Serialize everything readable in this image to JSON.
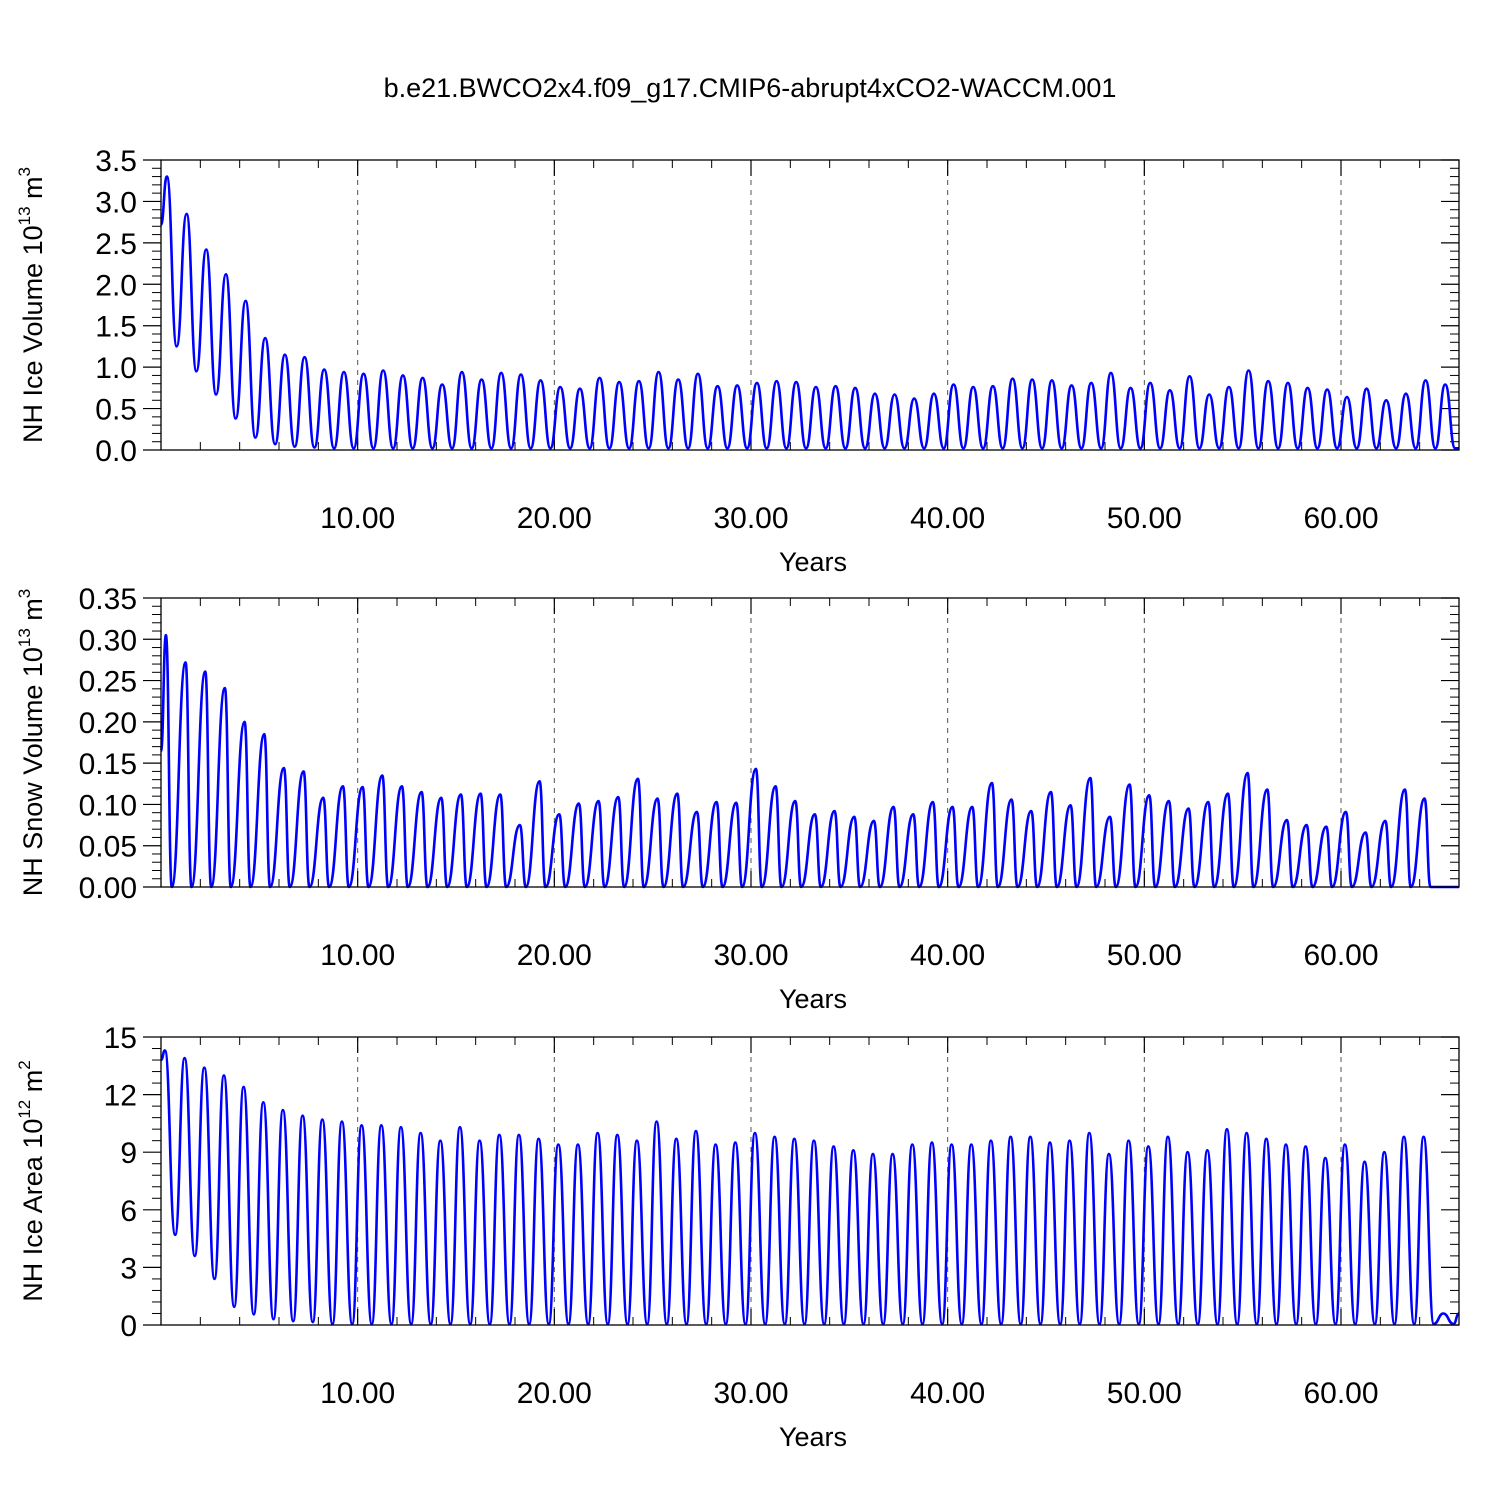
{
  "figure": {
    "title": "b.e21.BWCO2x4.f09_g17.CMIP6-abrupt4xCO2-WACCM.001"
  },
  "colors": {
    "series": "#0000ff",
    "axes": "#000000",
    "grid": "#555555"
  },
  "chart_data": [
    {
      "type": "line",
      "ylabel": "NH Ice Volume 10",
      "ylabel_sup": "13",
      "ylabel_unit": " m",
      "ylabel_unit_sup": "3",
      "xlabel": "Years",
      "xlim": [
        0,
        66
      ],
      "ylim": [
        0,
        3.5
      ],
      "x_ticks": [
        10,
        20,
        30,
        40,
        50,
        60
      ],
      "x_tick_labels": [
        "10.00",
        "20.00",
        "30.00",
        "40.00",
        "50.00",
        "60.00"
      ],
      "y_ticks": [
        0,
        0.5,
        1.0,
        1.5,
        2.0,
        2.5,
        3.0,
        3.5
      ],
      "y_tick_labels": [
        "0.0",
        "0.5",
        "1.0",
        "1.5",
        "2.0",
        "2.5",
        "3.0",
        "3.5"
      ],
      "x_grid": "dashed",
      "series": [
        {
          "period": 1,
          "start": 2.72,
          "end": 0.02,
          "peak_phase": 0.3,
          "trough_phase": 0.8,
          "peaks": [
            3.3,
            2.85,
            2.42,
            2.12,
            1.8,
            1.35,
            1.15,
            1.12,
            0.97,
            0.94,
            0.92,
            0.96,
            0.9,
            0.87,
            0.79,
            0.94,
            0.85,
            0.93,
            0.91,
            0.84,
            0.76,
            0.74,
            0.87,
            0.82,
            0.83,
            0.94,
            0.85,
            0.92,
            0.77,
            0.78,
            0.81,
            0.83,
            0.82,
            0.76,
            0.77,
            0.75,
            0.68,
            0.67,
            0.62,
            0.68,
            0.79,
            0.76,
            0.77,
            0.86,
            0.85,
            0.84,
            0.78,
            0.81,
            0.93,
            0.75,
            0.81,
            0.72,
            0.89,
            0.67,
            0.76,
            0.96,
            0.83,
            0.81,
            0.75,
            0.73,
            0.64,
            0.74,
            0.6,
            0.68,
            0.84,
            0.79
          ],
          "troughs": [
            1.25,
            0.95,
            0.67,
            0.38,
            0.15,
            0.07,
            0.04,
            0.03,
            0.02,
            0.02,
            0.02,
            0.02,
            0.02,
            0.02,
            0.02,
            0.02,
            0.02,
            0.02,
            0.02,
            0.02,
            0.02,
            0.02,
            0.02,
            0.02,
            0.02,
            0.02,
            0.02,
            0.02,
            0.02,
            0.02,
            0.02,
            0.02,
            0.02,
            0.02,
            0.02,
            0.02,
            0.02,
            0.02,
            0.02,
            0.02,
            0.02,
            0.02,
            0.02,
            0.02,
            0.02,
            0.02,
            0.02,
            0.02,
            0.02,
            0.02,
            0.02,
            0.02,
            0.02,
            0.02,
            0.02,
            0.02,
            0.02,
            0.02,
            0.02,
            0.02,
            0.02,
            0.02,
            0.02,
            0.02,
            0.02,
            0.02
          ]
        }
      ]
    },
    {
      "type": "line",
      "ylabel": "NH Snow Volume 10",
      "ylabel_sup": "13",
      "ylabel_unit": " m",
      "ylabel_unit_sup": "3",
      "xlabel": "Years",
      "xlim": [
        0,
        66
      ],
      "ylim": [
        0,
        0.35
      ],
      "x_ticks": [
        10,
        20,
        30,
        40,
        50,
        60
      ],
      "x_tick_labels": [
        "10.00",
        "20.00",
        "30.00",
        "40.00",
        "50.00",
        "60.00"
      ],
      "y_ticks": [
        0,
        0.05,
        0.1,
        0.15,
        0.2,
        0.25,
        0.3,
        0.35
      ],
      "y_tick_labels": [
        "0.00",
        "0.05",
        "0.10",
        "0.15",
        "0.20",
        "0.25",
        "0.30",
        "0.35"
      ],
      "x_grid": "dashed",
      "series": [
        {
          "period": 1,
          "start": 0.165,
          "end": 0.0,
          "peak_phase": 0.25,
          "trough_phase": 0.55,
          "peaks": [
            0.305,
            0.272,
            0.261,
            0.241,
            0.2,
            0.185,
            0.144,
            0.14,
            0.108,
            0.122,
            0.121,
            0.135,
            0.122,
            0.115,
            0.108,
            0.112,
            0.113,
            0.112,
            0.075,
            0.128,
            0.088,
            0.101,
            0.104,
            0.109,
            0.131,
            0.107,
            0.113,
            0.091,
            0.103,
            0.102,
            0.143,
            0.122,
            0.104,
            0.088,
            0.092,
            0.085,
            0.08,
            0.097,
            0.088,
            0.103,
            0.097,
            0.097,
            0.126,
            0.106,
            0.092,
            0.115,
            0.099,
            0.132,
            0.085,
            0.124,
            0.111,
            0.104,
            0.095,
            0.103,
            0.113,
            0.138,
            0.118,
            0.081,
            0.075,
            0.073,
            0.091,
            0.066,
            0.08,
            0.118,
            0.107,
            0.0
          ],
          "troughs": [
            0.0,
            0.0,
            0.0,
            0.0,
            0.0,
            0.0,
            0.0,
            0.0,
            0.0,
            0.0,
            0.0,
            0.0,
            0.0,
            0.0,
            0.0,
            0.0,
            0.0,
            0.0,
            0.0,
            0.0,
            0.0,
            0.0,
            0.0,
            0.0,
            0.0,
            0.0,
            0.0,
            0.0,
            0.0,
            0.0,
            0.0,
            0.0,
            0.0,
            0.0,
            0.0,
            0.0,
            0.0,
            0.0,
            0.0,
            0.0,
            0.0,
            0.0,
            0.0,
            0.0,
            0.0,
            0.0,
            0.0,
            0.0,
            0.0,
            0.0,
            0.0,
            0.0,
            0.0,
            0.0,
            0.0,
            0.0,
            0.0,
            0.0,
            0.0,
            0.0,
            0.0,
            0.0,
            0.0,
            0.0,
            0.0,
            0.0
          ]
        }
      ]
    },
    {
      "type": "line",
      "ylabel": "NH Ice Area 10",
      "ylabel_sup": "12",
      "ylabel_unit": " m",
      "ylabel_unit_sup": "2",
      "xlabel": "Years",
      "xlim": [
        0,
        66
      ],
      "ylim": [
        0,
        15
      ],
      "x_ticks": [
        10,
        20,
        30,
        40,
        50,
        60
      ],
      "x_tick_labels": [
        "10.00",
        "20.00",
        "30.00",
        "40.00",
        "50.00",
        "60.00"
      ],
      "y_ticks": [
        0,
        3,
        6,
        9,
        12,
        15
      ],
      "y_tick_labels": [
        "0",
        "3",
        "6",
        "9",
        "12",
        "15"
      ],
      "x_grid": "dashed",
      "series": [
        {
          "period": 1,
          "start": 13.8,
          "end": 0.6,
          "peak_phase": 0.2,
          "trough_phase": 0.72,
          "peaks": [
            14.3,
            13.9,
            13.4,
            13.0,
            12.4,
            11.6,
            11.2,
            10.9,
            10.7,
            10.6,
            10.4,
            10.4,
            10.3,
            10.0,
            9.6,
            10.3,
            9.6,
            9.9,
            9.9,
            9.7,
            9.4,
            9.4,
            10.0,
            9.9,
            9.6,
            10.6,
            9.7,
            10.1,
            9.4,
            9.5,
            10.0,
            9.8,
            9.7,
            9.6,
            9.3,
            9.1,
            8.9,
            8.9,
            9.4,
            9.5,
            9.4,
            9.4,
            9.6,
            9.8,
            9.8,
            9.5,
            9.6,
            10.0,
            8.9,
            9.6,
            9.3,
            9.8,
            9.0,
            9.1,
            10.2,
            10.0,
            9.7,
            9.4,
            9.3,
            8.7,
            9.4,
            8.5,
            9.0,
            9.8,
            9.8,
            0.6
          ],
          "troughs": [
            4.7,
            3.6,
            2.4,
            0.95,
            0.55,
            0.3,
            0.2,
            0.15,
            0.05,
            0.05,
            0.05,
            0.05,
            0.05,
            0.05,
            0.05,
            0.05,
            0.05,
            0.05,
            0.05,
            0.05,
            0.05,
            0.05,
            0.05,
            0.05,
            0.05,
            0.05,
            0.05,
            0.05,
            0.05,
            0.05,
            0.05,
            0.05,
            0.05,
            0.05,
            0.05,
            0.05,
            0.05,
            0.05,
            0.05,
            0.05,
            0.05,
            0.05,
            0.05,
            0.05,
            0.05,
            0.05,
            0.05,
            0.05,
            0.05,
            0.05,
            0.05,
            0.05,
            0.05,
            0.05,
            0.05,
            0.05,
            0.05,
            0.05,
            0.05,
            0.05,
            0.05,
            0.05,
            0.05,
            0.05,
            0.05,
            0.05
          ]
        }
      ]
    }
  ]
}
